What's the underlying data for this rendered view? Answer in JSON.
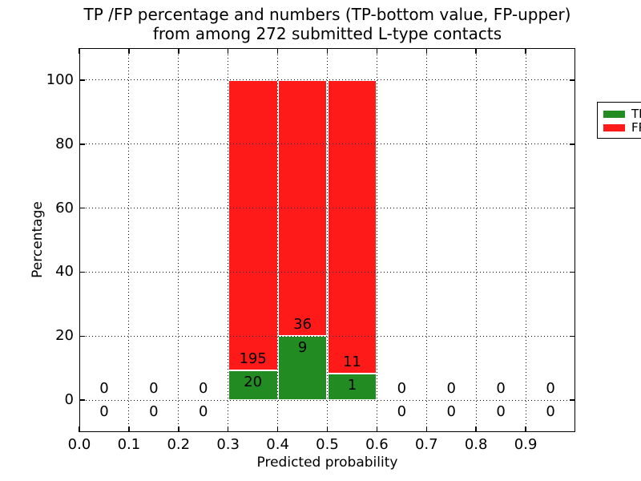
{
  "figure": {
    "title_line1": "TP /FP percentage and numbers (TP-bottom value, FP-upper)",
    "title_line2": "from among 272 submitted L-type contacts"
  },
  "chart_data": {
    "type": "bar",
    "stacked": true,
    "title": "TP /FP percentage and numbers (TP-bottom value, FP-upper)\nfrom among 272 submitted L-type contacts",
    "title_line1": "TP /FP percentage and numbers (TP-bottom value, FP-upper)",
    "title_line2": "from among 272 submitted L-type contacts",
    "xlabel": "Predicted probability",
    "ylabel": "Percentage",
    "xlim": [
      0.0,
      1.0
    ],
    "ylim": [
      -10,
      110
    ],
    "xticks": [
      0.0,
      0.1,
      0.2,
      0.3,
      0.4,
      0.5,
      0.6,
      0.7,
      0.8,
      0.9
    ],
    "xtick_labels": [
      "0.0",
      "0.1",
      "0.2",
      "0.3",
      "0.4",
      "0.5",
      "0.6",
      "0.7",
      "0.8",
      "0.9"
    ],
    "yticks": [
      0,
      20,
      40,
      60,
      80,
      100
    ],
    "ytick_labels": [
      "0",
      "20",
      "40",
      "60",
      "80",
      "100"
    ],
    "grid": true,
    "total_contacts": 272,
    "legend": {
      "position": "upper right",
      "entries": [
        {
          "label": "TP",
          "color": "#228B22"
        },
        {
          "label": "FP",
          "color": "#FF1A1A"
        }
      ]
    },
    "categories": [
      "0.0-0.1",
      "0.1-0.2",
      "0.2-0.3",
      "0.3-0.4",
      "0.4-0.5",
      "0.5-0.6",
      "0.6-0.7",
      "0.7-0.8",
      "0.8-0.9",
      "0.9-1.0"
    ],
    "series": [
      {
        "name": "TP",
        "color": "#228B22",
        "values": [
          0,
          0,
          0,
          9.302,
          20.0,
          8.333,
          0,
          0,
          0,
          0
        ]
      },
      {
        "name": "FP",
        "color": "#FF1A1A",
        "values": [
          0,
          0,
          0,
          90.698,
          80.0,
          91.667,
          0,
          0,
          0,
          0
        ]
      }
    ],
    "bins": [
      {
        "x0": 0.0,
        "x1": 0.1,
        "tp_count": 0,
        "fp_count": 0,
        "tp_pct": 0,
        "fp_pct": 0
      },
      {
        "x0": 0.1,
        "x1": 0.2,
        "tp_count": 0,
        "fp_count": 0,
        "tp_pct": 0,
        "fp_pct": 0
      },
      {
        "x0": 0.2,
        "x1": 0.3,
        "tp_count": 0,
        "fp_count": 0,
        "tp_pct": 0,
        "fp_pct": 0
      },
      {
        "x0": 0.3,
        "x1": 0.4,
        "tp_count": 20,
        "fp_count": 195,
        "tp_pct": 9.302,
        "fp_pct": 90.698
      },
      {
        "x0": 0.4,
        "x1": 0.5,
        "tp_count": 9,
        "fp_count": 36,
        "tp_pct": 20.0,
        "fp_pct": 80.0
      },
      {
        "x0": 0.5,
        "x1": 0.6,
        "tp_count": 1,
        "fp_count": 11,
        "tp_pct": 8.333,
        "fp_pct": 91.667
      },
      {
        "x0": 0.6,
        "x1": 0.7,
        "tp_count": 0,
        "fp_count": 0,
        "tp_pct": 0,
        "fp_pct": 0
      },
      {
        "x0": 0.7,
        "x1": 0.8,
        "tp_count": 0,
        "fp_count": 0,
        "tp_pct": 0,
        "fp_pct": 0
      },
      {
        "x0": 0.8,
        "x1": 0.9,
        "tp_count": 0,
        "fp_count": 0,
        "tp_pct": 0,
        "fp_pct": 0
      },
      {
        "x0": 0.9,
        "x1": 1.0,
        "tp_count": 0,
        "fp_count": 0,
        "tp_pct": 0,
        "fp_pct": 0
      }
    ]
  }
}
